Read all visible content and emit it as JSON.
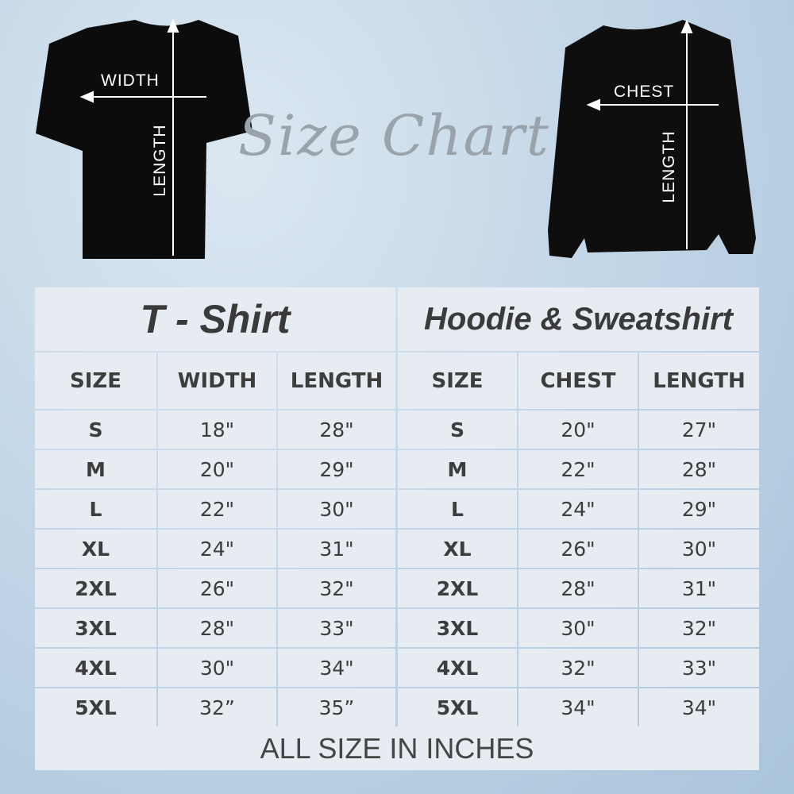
{
  "title_script": "Size Chart",
  "tshirt": {
    "title": "T - Shirt",
    "width_label": "WIDTH",
    "length_label": "LENGTH",
    "headers": [
      "SIZE",
      "WIDTH",
      "LENGTH"
    ],
    "rows": [
      [
        "S",
        "18\"",
        "28\""
      ],
      [
        "M",
        "20\"",
        "29\""
      ],
      [
        "L",
        "22\"",
        "30\""
      ],
      [
        "XL",
        "24\"",
        "31\""
      ],
      [
        "2XL",
        "26\"",
        "32\""
      ],
      [
        "3XL",
        "28\"",
        "33\""
      ],
      [
        "4XL",
        "30\"",
        "34\""
      ],
      [
        "5XL",
        "32”",
        "35”"
      ]
    ]
  },
  "hoodie": {
    "title": "Hoodie & Sweatshirt",
    "chest_label": "CHEST",
    "length_label": "LENGTH",
    "headers": [
      "SIZE",
      "CHEST",
      "LENGTH"
    ],
    "rows": [
      [
        "S",
        "20\"",
        "27\""
      ],
      [
        "M",
        "22\"",
        "28\""
      ],
      [
        "L",
        "24\"",
        "29\""
      ],
      [
        "XL",
        "26\"",
        "30\""
      ],
      [
        "2XL",
        "28\"",
        "31\""
      ],
      [
        "3XL",
        "30\"",
        "32\""
      ],
      [
        "4XL",
        "32\"",
        "33\""
      ],
      [
        "5XL",
        "34\"",
        "34\""
      ]
    ]
  },
  "footer": "ALL SIZE IN INCHES"
}
